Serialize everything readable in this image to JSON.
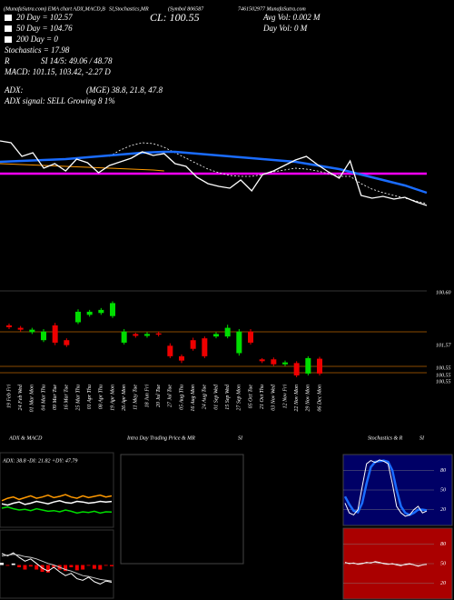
{
  "header": {
    "top": [
      "(MunafaSutra.com) EMA chart ADX,MACD,B",
      "SI,Stochastics,MR",
      "(Symbol 806587",
      "7461502977 MunafaSutra.com"
    ],
    "ema20": "20 Day = 102.57",
    "ema50": "50 Day = 104.76",
    "ema200": "200 Day = 0",
    "stochastics": "Stochastics = 17.98",
    "r": "R",
    "rsi": "SI 14/5: 49.06 / 48.78",
    "macd": "MACD: 101.15, 103.42, -2.27 D",
    "close": "CL: 100.55",
    "avg_vol": "Avg Vol: 0.002  M",
    "day_vol": "Day Vol: 0  M",
    "adx": "ADX:",
    "adx_values": "(MGE) 38.8, 21.8, 47.8",
    "adx_signal": "ADX  signal: SELL Growing 8 1%"
  },
  "main_chart": {
    "type": "line",
    "ylim": [
      96,
      108
    ],
    "series": [
      {
        "color": "#ff00ff",
        "width": 2.5,
        "values": [
          102.9,
          102.9,
          102.9,
          102.9,
          102.9,
          102.9,
          102.9,
          102.9,
          102.9,
          102.9,
          102.9,
          102.9,
          102.9,
          102.9,
          102.9,
          102.9,
          102.9,
          102.9,
          102.9,
          102.9,
          102.9,
          102.9,
          102.9,
          102.9,
          102.9,
          102.9,
          102.9,
          102.9,
          102.9,
          102.9,
          102.9,
          102.9,
          102.9,
          102.9,
          102.9,
          102.9,
          102.9,
          102.9,
          102.9,
          102.9
        ]
      },
      {
        "color": "#ff9900",
        "width": 1,
        "values": [
          104.0,
          103.95,
          103.9,
          103.85,
          103.8,
          103.75,
          103.7,
          103.65,
          103.6,
          103.55,
          103.5,
          103.45,
          103.4,
          103.35,
          103.3,
          103.2,
          null,
          null,
          null,
          null,
          null,
          null,
          null,
          null,
          null,
          null,
          null,
          null,
          null,
          null,
          null,
          null,
          null,
          null,
          null,
          null,
          null,
          null,
          null,
          null
        ]
      },
      {
        "color": "#ffffff",
        "width": 0.8,
        "dash": true,
        "values": [
          null,
          null,
          null,
          null,
          null,
          null,
          null,
          null,
          null,
          null,
          104.8,
          105.5,
          106.0,
          106.3,
          106.2,
          105.8,
          105.2,
          104.6,
          104.0,
          103.4,
          103.0,
          102.7,
          102.6,
          102.6,
          102.8,
          103.1,
          103.3,
          103.5,
          103.4,
          103.2,
          102.9,
          102.6,
          102.6,
          101.8,
          101.2,
          100.8,
          100.5,
          100.2,
          99.9,
          99.6
        ]
      },
      {
        "color": "#1a6cff",
        "width": 2.5,
        "values": [
          104.2,
          104.25,
          104.3,
          104.35,
          104.4,
          104.45,
          104.5,
          104.6,
          104.7,
          104.8,
          104.9,
          105.0,
          105.1,
          105.2,
          105.25,
          105.3,
          105.3,
          105.2,
          105.1,
          105.0,
          104.9,
          104.8,
          104.7,
          104.6,
          104.5,
          104.4,
          104.3,
          104.2,
          104.0,
          103.8,
          103.6,
          103.4,
          103.1,
          102.8,
          102.5,
          102.2,
          101.9,
          101.6,
          101.2,
          100.8
        ]
      },
      {
        "color": "#ffffff",
        "width": 1.3,
        "values": [
          106.5,
          106.3,
          104.8,
          105.2,
          103.5,
          104.0,
          103.2,
          104.5,
          104.1,
          103.0,
          103.8,
          104.2,
          104.6,
          105.3,
          104.9,
          105.1,
          104.0,
          103.7,
          102.5,
          101.8,
          101.5,
          101.3,
          102.2,
          101.0,
          102.8,
          103.2,
          103.8,
          104.4,
          104.8,
          103.9,
          103.1,
          102.4,
          104.3,
          100.5,
          100.2,
          100.4,
          100.1,
          100.3,
          99.8,
          99.4
        ]
      }
    ]
  },
  "candles": {
    "type": "candlestick",
    "ylim": [
      96,
      108.5
    ],
    "open": [
      104.4,
      104.0,
      103.3,
      102.0,
      104.4,
      102.0,
      104.9,
      106.1,
      106.4,
      105.9,
      101.6,
      103.0,
      102.7,
      103.1,
      101.1,
      99.4,
      102.0,
      102.3,
      102.6,
      102.6,
      99.9,
      103.4,
      98.9,
      98.9,
      98.1,
      98.3,
      96.6,
      99.0
    ],
    "close": [
      104.1,
      103.7,
      103.7,
      103.4,
      101.6,
      101.2,
      106.6,
      106.6,
      106.9,
      108.0,
      103.4,
      102.7,
      103.0,
      102.9,
      99.4,
      98.7,
      100.6,
      99.4,
      103.0,
      104.0,
      103.4,
      101.6,
      98.6,
      98.1,
      98.4,
      96.3,
      99.1,
      96.6
    ],
    "high": [
      104.7,
      104.3,
      104.0,
      103.8,
      104.8,
      102.3,
      107.0,
      106.9,
      107.2,
      108.3,
      103.8,
      103.2,
      103.3,
      103.4,
      101.5,
      99.7,
      102.4,
      102.6,
      103.3,
      104.5,
      103.8,
      103.8,
      99.1,
      99.2,
      98.7,
      98.6,
      99.4,
      99.3
    ],
    "low": [
      103.8,
      103.4,
      103.0,
      101.7,
      101.2,
      100.9,
      104.6,
      105.8,
      106.1,
      105.6,
      101.3,
      102.4,
      102.4,
      102.6,
      99.1,
      98.3,
      100.3,
      99.1,
      102.3,
      102.3,
      99.5,
      101.3,
      98.3,
      97.8,
      97.8,
      96.0,
      96.3,
      96.3
    ],
    "dates": [
      "19 Feb Fri",
      "24 Feb Wed",
      "01 Mar Mon",
      "04 Mar Thu",
      "09 Mar Tue",
      "16 Mar Tue",
      "25 Mar Thu",
      "01 Apr Thu",
      "08 Apr Thu",
      "19 Apr Mon",
      "26 Apr Mon",
      "11 May Tue",
      "18 Jun Fri",
      "20 Jul Tue",
      "27 Jul Tue",
      "05 Aug Thu",
      "16 Aug Mon",
      "24 Aug Tue",
      "01 Sep Wed",
      "15 Sep Wed",
      "27 Sep Mon",
      "05 Oct Tue",
      "21 Oct Thu",
      "03 Nov Wed",
      "12 Nov Fri",
      "22 Nov Mon",
      "29 Nov Mon",
      "06 Dec Mon"
    ],
    "level_labels": [
      "100.60",
      "101.57",
      "100.55",
      "100.55",
      "100.55"
    ]
  },
  "adx_panel": {
    "title": "ADX  & MACD",
    "label": "ADX: 38.8  -DI: 21.82  +DY: 47.79",
    "ylim": [
      0,
      100
    ],
    "series": [
      {
        "color": "#ff9900",
        "values": [
          40,
          44,
          46,
          42,
          45,
          48,
          44,
          46,
          49,
          45,
          47,
          50,
          46,
          44,
          48,
          45,
          47,
          49,
          46,
          47.8
        ]
      },
      {
        "color": "#ffffff",
        "values": [
          35,
          33,
          36,
          38,
          34,
          36,
          39,
          37,
          35,
          38,
          40,
          37,
          36,
          39,
          38,
          36,
          37,
          39,
          38,
          38.8
        ]
      },
      {
        "color": "#00dd00",
        "values": [
          28,
          30,
          27,
          25,
          26,
          24,
          27,
          25,
          23,
          24,
          22,
          25,
          23,
          20,
          22,
          21,
          23,
          20,
          22,
          21.8
        ]
      }
    ]
  },
  "macd_panel": {
    "ylim": [
      -4,
      4
    ],
    "histogram": [
      0.3,
      -0.1,
      0.2,
      -0.3,
      -0.6,
      -0.2,
      -0.6,
      -0.9,
      -1.0,
      -0.3,
      -0.6,
      -0.8,
      -0.3,
      -0.7,
      -0.6,
      -0.1,
      -0.5,
      -0.6,
      -0.1,
      -0.17
    ],
    "series": [
      {
        "color": "#ffffff",
        "values": [
          1.5,
          1.2,
          1.6,
          1.0,
          0.5,
          0.8,
          0.2,
          -0.4,
          -0.8,
          -0.3,
          -0.9,
          -1.4,
          -1.1,
          -1.8,
          -2.0,
          -1.6,
          -2.2,
          -2.5,
          -2.1,
          -2.27
        ]
      },
      {
        "color": "#cccccc",
        "values": [
          1.2,
          1.3,
          1.4,
          1.3,
          1.1,
          1.0,
          0.8,
          0.5,
          0.2,
          0.0,
          -0.3,
          -0.6,
          -0.8,
          -1.1,
          -1.4,
          -1.5,
          -1.7,
          -1.9,
          -2.0,
          -2.1
        ]
      }
    ]
  },
  "intraday_panel": {
    "title": "Intra  Day  Trading Price  & MR",
    "title2": "SI"
  },
  "stoch_panel": {
    "title": "Stochastics & R",
    "title2": "SI",
    "ylim": [
      0,
      100
    ],
    "yticks": [
      20,
      50,
      80
    ],
    "series": [
      {
        "color": "#1a6cff",
        "width": 2.5,
        "values": [
          40,
          28,
          18,
          16,
          30,
          60,
          85,
          93,
          94,
          95,
          93,
          80,
          50,
          25,
          15,
          12,
          15,
          20,
          20,
          19
        ]
      },
      {
        "color": "#ffffff",
        "width": 1,
        "values": [
          30,
          15,
          12,
          20,
          55,
          90,
          95,
          92,
          96,
          94,
          90,
          60,
          25,
          15,
          10,
          12,
          20,
          25,
          15,
          17.98
        ]
      }
    ]
  },
  "rsi_panel": {
    "ylim": [
      0,
      100
    ],
    "yticks": [
      20,
      50,
      80
    ],
    "series": [
      {
        "color": "#ffffff",
        "width": 1,
        "values": [
          52,
          50,
          51,
          49,
          50,
          52,
          51,
          53,
          52,
          50,
          49,
          50,
          48,
          47,
          49,
          50,
          48,
          46,
          48,
          49.06
        ]
      },
      {
        "color": "#dddddd",
        "width": 0.6,
        "values": [
          51,
          51,
          50,
          50,
          51,
          51,
          52,
          52,
          51,
          51,
          50,
          49,
          49,
          48,
          48,
          49,
          48,
          47,
          48,
          48.78
        ]
      }
    ]
  }
}
